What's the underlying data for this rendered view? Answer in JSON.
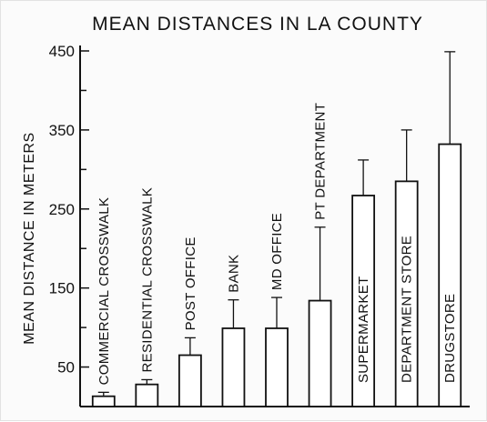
{
  "chart_data": {
    "type": "bar",
    "title": "MEAN DISTANCES IN LA COUNTY",
    "xlabel": "",
    "ylabel": "MEAN DISTANCE IN METERS",
    "ylim": [
      0,
      450
    ],
    "yticks": [
      50,
      150,
      250,
      350,
      450
    ],
    "grid": false,
    "legend": "none",
    "error_bars": true,
    "categories": [
      "COMMERCIAL CROSSWALK",
      "RESIDENTIAL CROSSWALK",
      "POST OFFICE",
      "BANK",
      "MD OFFICE",
      "PT DEPARTMENT",
      "SUPERMARKET",
      "DEPARTMENT STORE",
      "DRUGSTORE"
    ],
    "values": [
      13,
      28,
      65,
      99,
      99,
      134,
      267,
      285,
      332
    ],
    "error_upper": [
      18,
      34,
      87,
      135,
      138,
      227,
      312,
      350,
      449
    ],
    "colors": {
      "bar_fill": "#ffffff",
      "ink": "#111111"
    }
  }
}
